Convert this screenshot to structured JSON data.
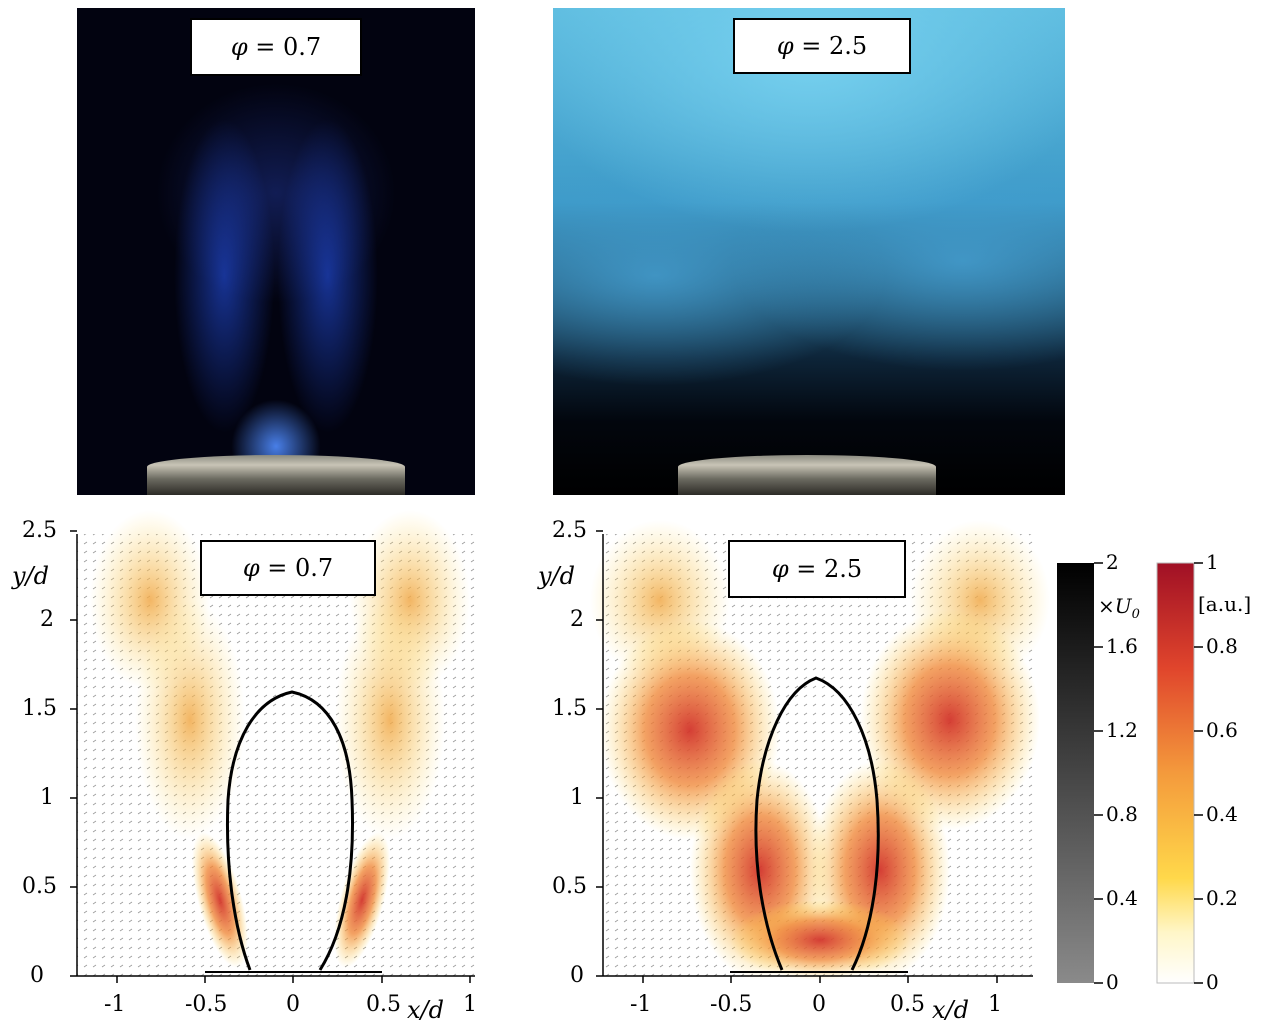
{
  "photos": {
    "left": {
      "label": "φ = 0.7",
      "phi_symbol": "φ",
      "phi_value": " = 0.7"
    },
    "right": {
      "label": "φ = 2.5",
      "phi_symbol": "φ",
      "phi_value": " = 2.5"
    }
  },
  "plots": {
    "left": {
      "phi_symbol": "φ",
      "phi_value": " = 0.7"
    },
    "right": {
      "phi_symbol": "φ",
      "phi_value": " = 2.5"
    },
    "y_ticks": [
      "0",
      "0.5",
      "1",
      "1.5",
      "2",
      "2.5"
    ],
    "x_ticks": [
      "-1",
      "-0.5",
      "0",
      "0.5",
      "1"
    ],
    "y_label": "y/d",
    "x_label": "x/d"
  },
  "colorbars": {
    "velocity": {
      "ticks": [
        "0",
        "0.4",
        "0.8",
        "1.2",
        "1.6",
        "2"
      ],
      "unit": "×U",
      "unit_sub": "0"
    },
    "intensity": {
      "ticks": [
        "0",
        "0.2",
        "0.4",
        "0.6",
        "0.8",
        "1"
      ],
      "unit": "[a.u.]"
    }
  },
  "colors": {
    "flame_blue": "#3a6cff",
    "flame_cyan": "#5fbde0",
    "heat_red": "#c8102e",
    "heat_yellow": "#ffd84a"
  }
}
